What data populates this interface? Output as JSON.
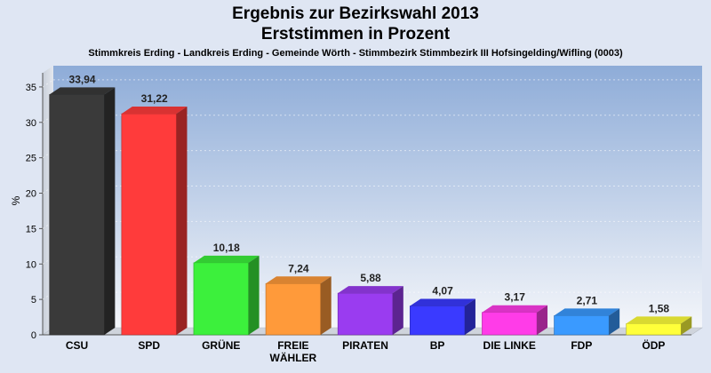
{
  "chart_data": {
    "type": "bar",
    "title": "Ergebnis zur Bezirkswahl 2013",
    "title2": "Erststimmen in Prozent",
    "subtitle": "Stimmkreis Erding - Landkreis Erding - Gemeinde Wörth - Stimmbezirk Stimmbezirk III Hofsingelding/Wifling (0003)",
    "ylabel": "%",
    "ylim": [
      0,
      38
    ],
    "yticks": [
      0,
      5,
      10,
      15,
      20,
      25,
      30,
      35
    ],
    "grid": true,
    "legend": "none",
    "categories": [
      [
        "CSU"
      ],
      [
        "SPD"
      ],
      [
        "GRÜNE"
      ],
      [
        "FREIE",
        "WÄHLER"
      ],
      [
        "PIRATEN"
      ],
      [
        "BP"
      ],
      [
        "DIE LINKE"
      ],
      [
        "FDP"
      ],
      [
        "ÖDP"
      ]
    ],
    "values": [
      33.94,
      31.22,
      10.18,
      7.24,
      5.88,
      4.07,
      3.17,
      2.71,
      1.58
    ],
    "value_labels": [
      "33,94",
      "31,22",
      "10,18",
      "7,24",
      "5,88",
      "4,07",
      "3,17",
      "2,71",
      "1,58"
    ],
    "colors": [
      "#3a3a3a",
      "#ff3b3b",
      "#3cf03c",
      "#ff9a3a",
      "#9a3cf0",
      "#3a3aff",
      "#ff3ce8",
      "#3a9aff",
      "#ffff3a"
    ]
  }
}
